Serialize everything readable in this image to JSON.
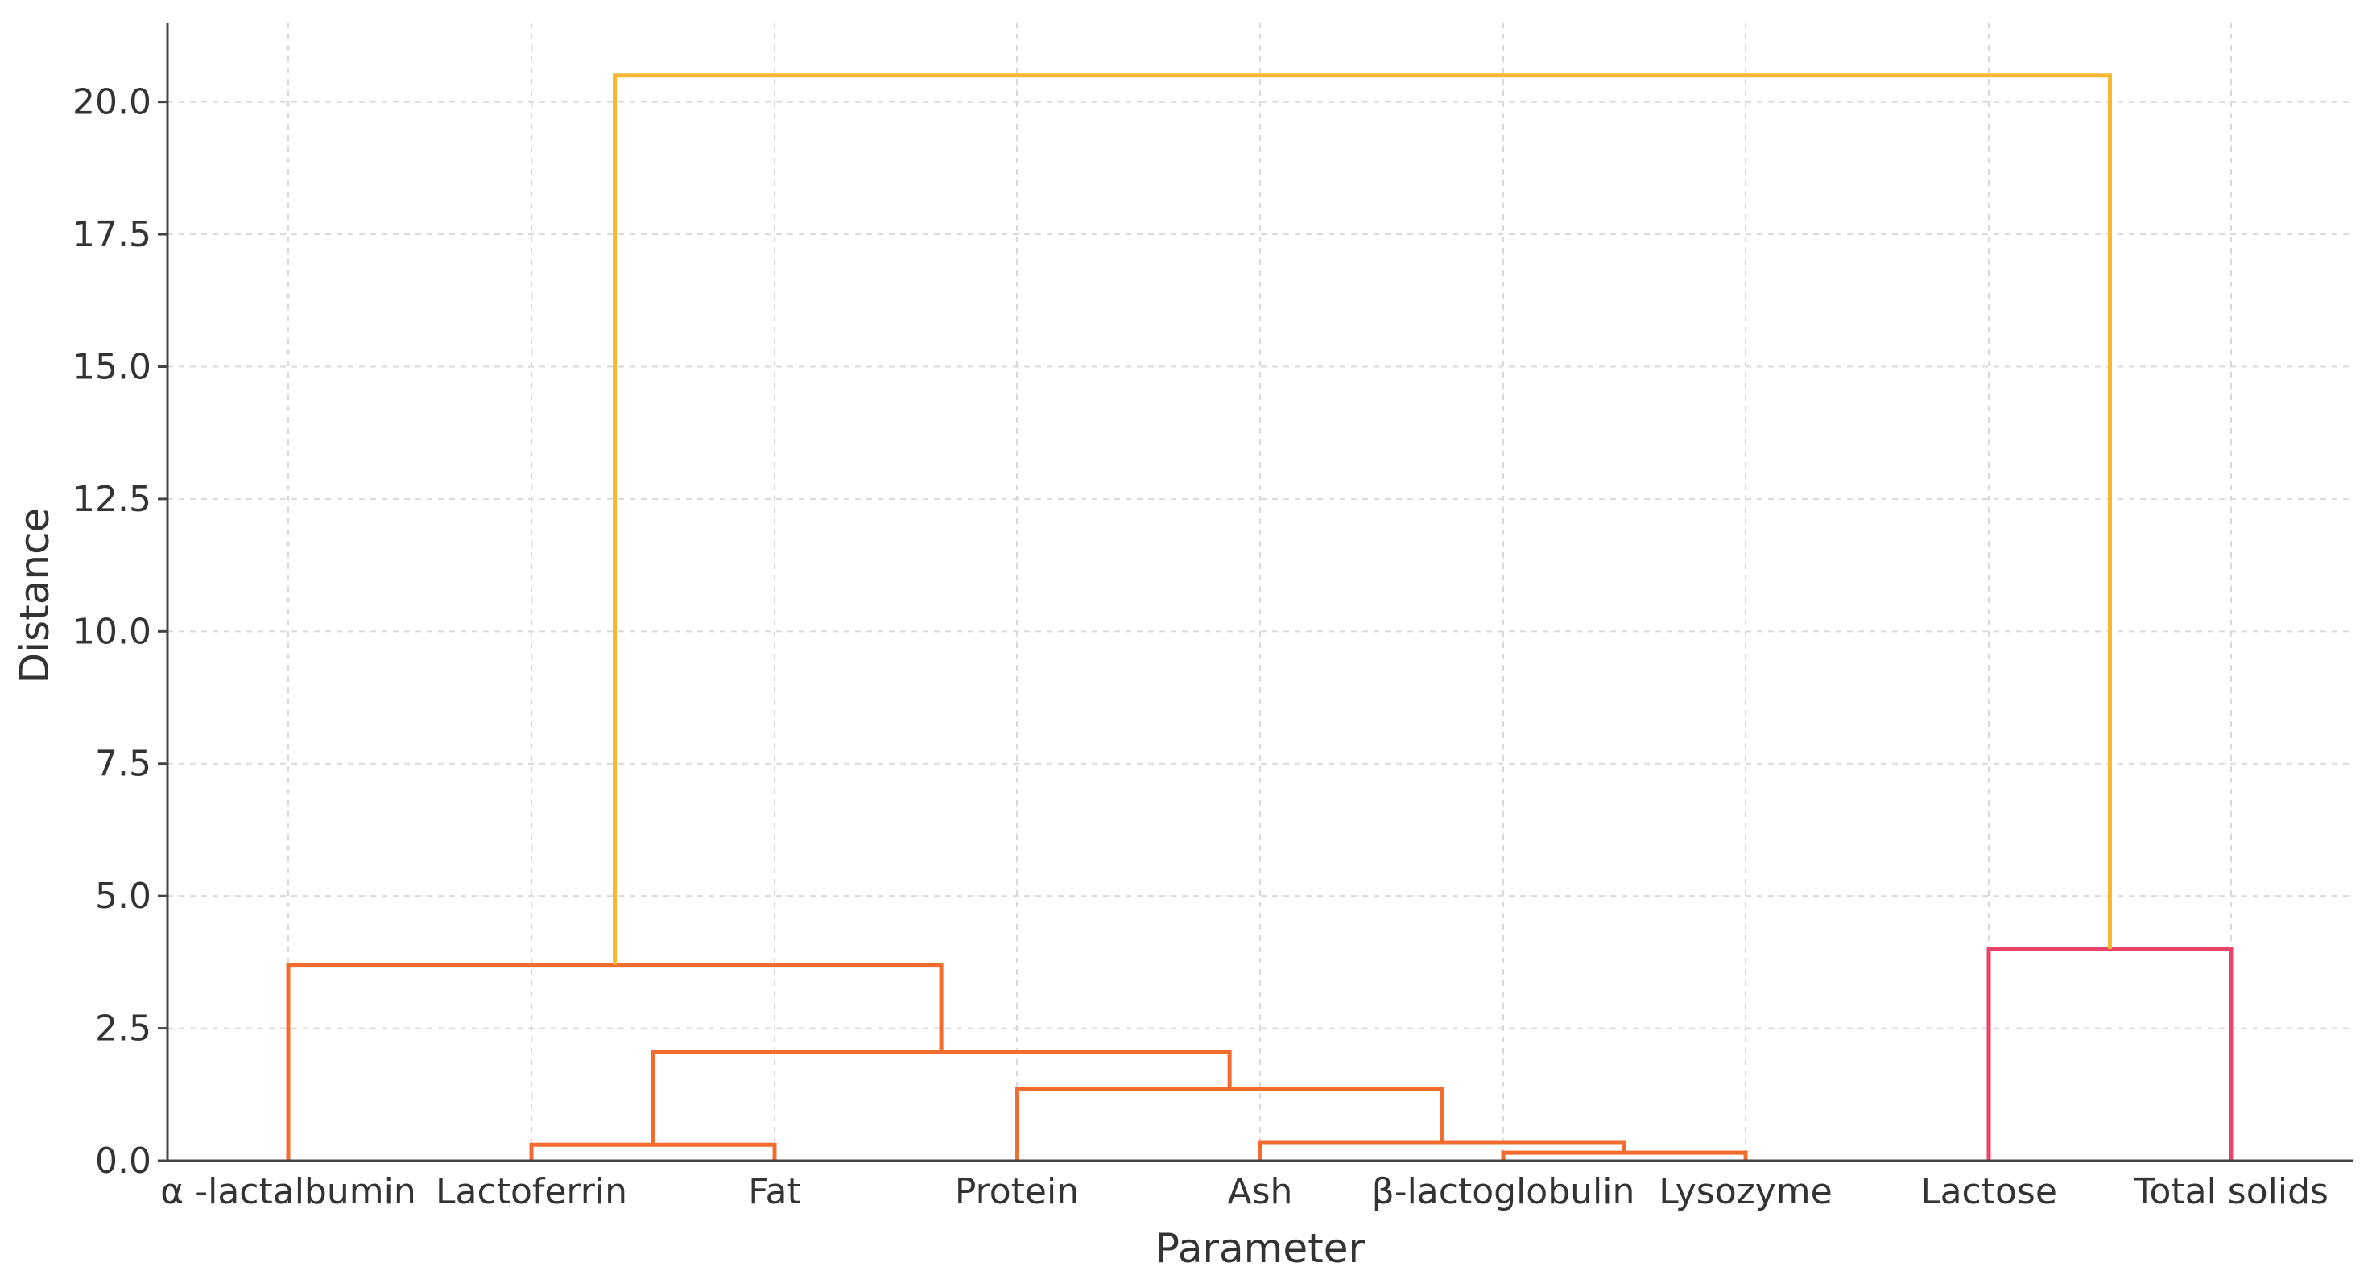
{
  "chart_data": {
    "type": "dendrogram",
    "xlabel": "Parameter",
    "ylabel": "Distance",
    "ylim": [
      0,
      21.5
    ],
    "grid": true,
    "leaves": [
      "α -lactalbumin",
      "Lactoferrin",
      "Fat",
      "Protein",
      "Ash",
      "β-lactoglobulin",
      "Lysozyme",
      "Lactose",
      "Total solids"
    ],
    "y_ticks": [
      "0.0",
      "2.5",
      "5.0",
      "7.5",
      "10.0",
      "12.5",
      "15.0",
      "17.5",
      "20.0"
    ],
    "y_tick_values": [
      0,
      2.5,
      5,
      7.5,
      10,
      12.5,
      15,
      17.5,
      20
    ],
    "clusters_colors": {
      "cluster_1": "#f26b2f",
      "cluster_2": "#e8436b",
      "root": "#f7b733"
    },
    "merges": [
      {
        "id": "m1",
        "left": "leaf:5",
        "right": "leaf:6",
        "height": 0.15,
        "color": "#f26b2f"
      },
      {
        "id": "m2",
        "left": "leaf:4",
        "right": "m1",
        "height": 0.35,
        "color": "#f26b2f"
      },
      {
        "id": "m3",
        "left": "leaf:1",
        "right": "leaf:2",
        "height": 0.3,
        "color": "#f26b2f"
      },
      {
        "id": "m4",
        "left": "leaf:3",
        "right": "m2",
        "height": 1.35,
        "color": "#f26b2f"
      },
      {
        "id": "m5",
        "left": "m3",
        "right": "m4",
        "height": 2.05,
        "color": "#f26b2f"
      },
      {
        "id": "m6",
        "left": "leaf:0",
        "right": "m5",
        "height": 3.7,
        "color": "#f26b2f"
      },
      {
        "id": "m7",
        "left": "leaf:7",
        "right": "leaf:8",
        "height": 4.0,
        "color": "#e8436b"
      },
      {
        "id": "m8",
        "left": "m6",
        "right": "m7",
        "height": 20.5,
        "color": "#f7b733"
      }
    ]
  }
}
